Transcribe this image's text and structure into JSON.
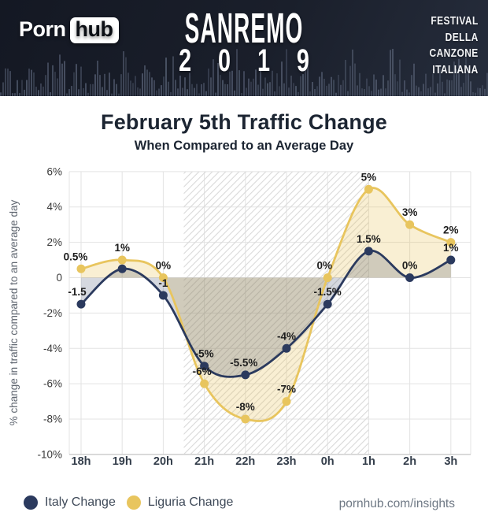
{
  "header": {
    "logo_prefix": "Porn",
    "logo_suffix": "hub",
    "show_line1": "SANREMO",
    "show_line2": "2 0 1 9",
    "festival_lines": [
      "FESTIVAL",
      "DELLA",
      "CANZONE",
      "ITALIANA"
    ]
  },
  "main": {
    "title": "February 5th Traffic Change",
    "subtitle": "When Compared to an Average Day"
  },
  "chart_data": {
    "type": "line",
    "categories": [
      "18h",
      "19h",
      "20h",
      "21h",
      "22h",
      "23h",
      "0h",
      "1h",
      "2h",
      "3h"
    ],
    "series": [
      {
        "name": "Italy Change",
        "color": "#2b3a5e",
        "fill": "rgba(43,58,94,0.20)",
        "values": [
          -1.5,
          0.5,
          -1,
          -5,
          -5.5,
          -4,
          -1.5,
          1.5,
          0,
          1
        ],
        "labels": [
          "-1.5",
          "",
          "-1",
          "-5%",
          "-5.5%",
          "-4%",
          "-1.5%",
          "1.5%",
          "0%",
          "1%"
        ],
        "label_dx": [
          -5,
          0,
          0,
          0,
          -2,
          0,
          0,
          0,
          0,
          0
        ]
      },
      {
        "name": "Liguria Change",
        "color": "#e8c55e",
        "fill": "rgba(232,197,94,0.27)",
        "values": [
          0.5,
          1,
          0,
          -6,
          -8,
          -7,
          0,
          5,
          3,
          2
        ],
        "labels": [
          "0.5%",
          "1%",
          "0%",
          "-6%",
          "-8%",
          "-7%",
          "0%",
          "5%",
          "3%",
          "2%"
        ],
        "label_dx": [
          -7,
          0,
          0,
          -3,
          0,
          0,
          -4,
          0,
          0,
          0
        ]
      }
    ],
    "ylabel": "% change in traffic compared to an average day",
    "yticks": [
      {
        "value": 6,
        "label": "6%"
      },
      {
        "value": 4,
        "label": "4%"
      },
      {
        "value": 2,
        "label": "2%"
      },
      {
        "value": 0,
        "label": "0"
      },
      {
        "value": -2,
        "label": "-2%"
      },
      {
        "value": -4,
        "label": "-4%"
      },
      {
        "value": -6,
        "label": "-6%"
      },
      {
        "value": -8,
        "label": "-8%"
      },
      {
        "value": -10,
        "label": "-10%"
      }
    ],
    "ylim": [
      -10,
      6
    ],
    "grid": true,
    "highlight_band": {
      "start_category_index": 2.5,
      "end_category_index": 7
    }
  },
  "footer": {
    "legend": [
      {
        "label": "Italy Change",
        "color": "#2b3a5e"
      },
      {
        "label": "Liguria Change",
        "color": "#e8c55e"
      }
    ],
    "site": "pornhub.com/insights"
  }
}
